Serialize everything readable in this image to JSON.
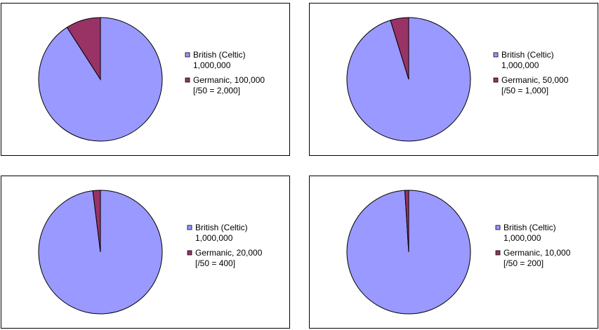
{
  "chart_data": [
    {
      "type": "pie",
      "categories": [
        [
          "British (Celtic)",
          "1,000,000"
        ],
        [
          "Germanic, 100,000",
          "[/50 = 2,000]"
        ]
      ],
      "values": [
        1000000,
        100000
      ],
      "colors": [
        "#9999ff",
        "#993366"
      ]
    },
    {
      "type": "pie",
      "categories": [
        [
          "British (Celtic)",
          "1,000,000"
        ],
        [
          "Germanic, 50,000",
          "[/50 = 1,000]"
        ]
      ],
      "values": [
        1000000,
        50000
      ],
      "colors": [
        "#9999ff",
        "#993366"
      ]
    },
    {
      "type": "pie",
      "categories": [
        [
          "British (Celtic)",
          "1,000,000"
        ],
        [
          "Germanic, 20,000",
          "[/50 = 400]"
        ]
      ],
      "values": [
        1000000,
        20000
      ],
      "colors": [
        "#9999ff",
        "#993366"
      ]
    },
    {
      "type": "pie",
      "categories": [
        [
          "British (Celtic)",
          "1,000,000"
        ],
        [
          "Germanic, 10,000",
          "[/50 = 200]"
        ]
      ],
      "values": [
        1000000,
        10000
      ],
      "colors": [
        "#9999ff",
        "#993366"
      ]
    }
  ]
}
